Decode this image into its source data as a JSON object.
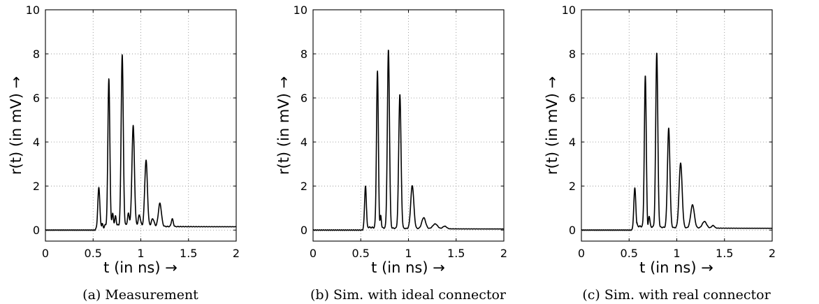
{
  "chart_data": [
    {
      "type": "line",
      "caption": "(a) Measurement",
      "xlabel": "t    (in ns) →",
      "ylabel": "r(t)    (in mV) →",
      "xlim": [
        0,
        2
      ],
      "ylim": [
        -0.5,
        10
      ],
      "xticks": [
        "0",
        "0.5",
        "1",
        "1.5",
        "2"
      ],
      "yticks": [
        "0",
        "2",
        "4",
        "6",
        "8",
        "10"
      ],
      "grid": true,
      "peaks": [
        {
          "t": 0.56,
          "v": 1.8,
          "w": 0.01
        },
        {
          "t": 0.665,
          "v": 6.7,
          "w": 0.01
        },
        {
          "t": 0.805,
          "v": 7.8,
          "w": 0.011
        },
        {
          "t": 0.92,
          "v": 4.55,
          "w": 0.013
        },
        {
          "t": 1.055,
          "v": 3.0,
          "w": 0.014
        },
        {
          "t": 1.2,
          "v": 1.05,
          "w": 0.016
        },
        {
          "t": 1.33,
          "v": 0.35,
          "w": 0.01
        },
        {
          "t": 0.705,
          "v": 0.5,
          "w": 0.008
        },
        {
          "t": 0.735,
          "v": 0.4,
          "w": 0.008
        },
        {
          "t": 0.87,
          "v": 0.55,
          "w": 0.01
        },
        {
          "t": 0.985,
          "v": 0.5,
          "w": 0.012
        },
        {
          "t": 1.125,
          "v": 0.35,
          "w": 0.014
        }
      ],
      "dips": [
        {
          "t": 0.615,
          "v": -0.1,
          "w": 0.008
        }
      ],
      "tail": {
        "start": 0.59,
        "level": 0.1,
        "decay": 0.32,
        "ripple": 0.06
      },
      "rise": {
        "start": 0.52,
        "end": 0.545,
        "level": 0.15
      }
    },
    {
      "type": "line",
      "caption": "(b) Sim. with ideal connector",
      "xlabel": "t    (in ns) →",
      "ylabel": "r(t)    (in mV) →",
      "xlim": [
        0,
        2
      ],
      "ylim": [
        -0.5,
        10
      ],
      "xticks": [
        "0",
        "0.5",
        "1",
        "1.5",
        "2"
      ],
      "yticks": [
        "0",
        "2",
        "4",
        "6",
        "8",
        "10"
      ],
      "grid": true,
      "peaks": [
        {
          "t": 0.55,
          "v": 1.95,
          "w": 0.01
        },
        {
          "t": 0.675,
          "v": 7.1,
          "w": 0.01
        },
        {
          "t": 0.79,
          "v": 8.1,
          "w": 0.011
        },
        {
          "t": 0.91,
          "v": 6.1,
          "w": 0.012
        },
        {
          "t": 1.04,
          "v": 1.95,
          "w": 0.016
        },
        {
          "t": 1.16,
          "v": 0.5,
          "w": 0.02
        },
        {
          "t": 1.28,
          "v": 0.22,
          "w": 0.025
        },
        {
          "t": 1.38,
          "v": 0.12,
          "w": 0.02
        },
        {
          "t": 0.71,
          "v": 0.55,
          "w": 0.006
        }
      ],
      "dips": [
        {
          "t": 0.565,
          "v": -0.25,
          "w": 0.006
        },
        {
          "t": 0.693,
          "v": -0.35,
          "w": 0.005
        }
      ],
      "tail": {
        "start": 0.56,
        "level": 0.08,
        "decay": 0.35,
        "ripple": 0.03
      },
      "rise": {
        "start": 0.53,
        "end": 0.54,
        "level": 0.05
      }
    },
    {
      "type": "line",
      "caption": "(c) Sim. with real connector",
      "xlabel": "t    (in ns) →",
      "ylabel": "r(t)    (in mV) →",
      "xlim": [
        0,
        2
      ],
      "ylim": [
        -0.5,
        10
      ],
      "xticks": [
        "0",
        "0.5",
        "1",
        "1.5",
        "2"
      ],
      "yticks": [
        "0",
        "2",
        "4",
        "6",
        "8",
        "10"
      ],
      "grid": true,
      "peaks": [
        {
          "t": 0.56,
          "v": 1.85,
          "w": 0.01
        },
        {
          "t": 0.67,
          "v": 6.85,
          "w": 0.01
        },
        {
          "t": 0.79,
          "v": 7.95,
          "w": 0.011
        },
        {
          "t": 0.915,
          "v": 4.5,
          "w": 0.013
        },
        {
          "t": 1.04,
          "v": 2.95,
          "w": 0.016
        },
        {
          "t": 1.165,
          "v": 1.05,
          "w": 0.019
        },
        {
          "t": 1.29,
          "v": 0.3,
          "w": 0.022
        },
        {
          "t": 1.38,
          "v": 0.12,
          "w": 0.015
        },
        {
          "t": 0.71,
          "v": 0.5,
          "w": 0.008
        }
      ],
      "dips": [
        {
          "t": 0.695,
          "v": -0.25,
          "w": 0.005
        }
      ],
      "tail": {
        "start": 0.58,
        "level": 0.1,
        "decay": 0.33,
        "ripple": 0.03
      },
      "rise": {
        "start": 0.53,
        "end": 0.545,
        "level": 0.08
      }
    }
  ]
}
